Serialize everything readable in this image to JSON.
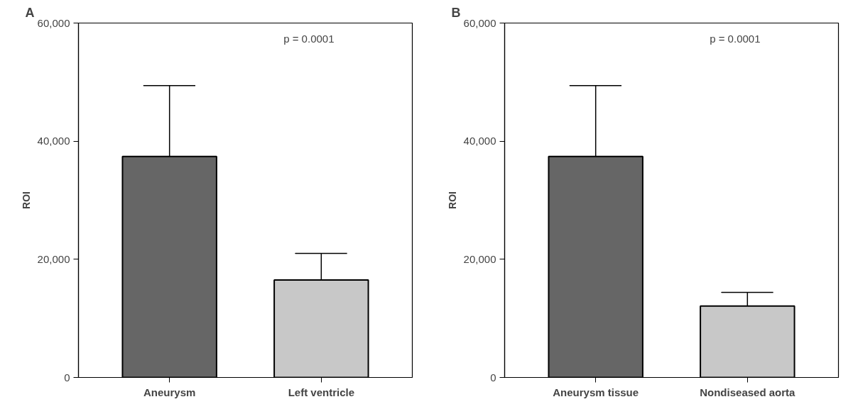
{
  "chart_data": [
    {
      "type": "bar",
      "title": "A",
      "ylabel": "ROI",
      "categories": [
        "Aneurysm",
        "Left ventricle"
      ],
      "values": [
        37400,
        16500
      ],
      "colors": [
        "#666666",
        "#c8c8c8"
      ],
      "errors": [
        [
          37400,
          49400
        ],
        [
          16500,
          21000
        ]
      ],
      "ylim": [
        0,
        60000
      ],
      "yticks": [
        {
          "value": 0,
          "label": "0"
        },
        {
          "value": 20000,
          "label": "20,000"
        },
        {
          "value": 40000,
          "label": "40,000"
        },
        {
          "value": 60000,
          "label": "60,000"
        }
      ],
      "grid": false,
      "annotations": [
        "p = 0.0001"
      ]
    },
    {
      "type": "bar",
      "title": "B",
      "ylabel": "ROI",
      "categories": [
        "Aneurysm tissue",
        "Nondiseased aorta"
      ],
      "values": [
        37400,
        12100
      ],
      "colors": [
        "#666666",
        "#c8c8c8"
      ],
      "errors": [
        [
          37400,
          49400
        ],
        [
          12100,
          14400
        ]
      ],
      "ylim": [
        0,
        60000
      ],
      "yticks": [
        {
          "value": 0,
          "label": "0"
        },
        {
          "value": 20000,
          "label": "20,000"
        },
        {
          "value": 40000,
          "label": "40,000"
        },
        {
          "value": 60000,
          "label": "60,000"
        }
      ],
      "grid": false,
      "annotations": [
        "p = 0.0001"
      ]
    }
  ]
}
